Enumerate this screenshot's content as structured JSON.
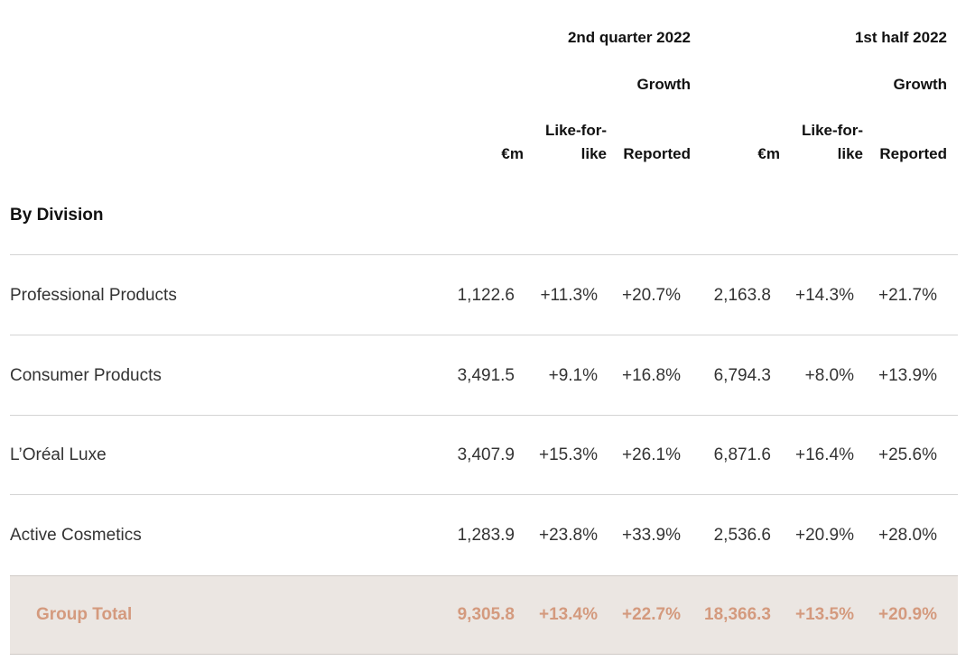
{
  "header": {
    "period1": "2nd quarter 2022",
    "period2": "1st half 2022",
    "growth1": "Growth",
    "growth2": "Growth",
    "em1": "€m",
    "lfl1_line1": "Like-for-",
    "lfl1_line2": "like",
    "reported1": "Reported",
    "em2": "€m",
    "lfl2_line1": "Like-for-",
    "lfl2_line2": "like",
    "reported2": "Reported"
  },
  "section_title": "By Division",
  "rows": [
    {
      "label": "Professional Products",
      "values": [
        "1,122.6",
        "+11.3%",
        "+20.7%",
        "2,163.8",
        "+14.3%",
        "+21.7%"
      ]
    },
    {
      "label": "Consumer Products",
      "values": [
        "3,491.5",
        "+9.1%",
        "+16.8%",
        "6,794.3",
        "+8.0%",
        "+13.9%"
      ]
    },
    {
      "label": "L’Oréal Luxe",
      "values": [
        "3,407.9",
        "+15.3%",
        "+26.1%",
        "6,871.6",
        "+16.4%",
        "+25.6%"
      ]
    },
    {
      "label": "Active Cosmetics",
      "values": [
        "1,283.9",
        "+23.8%",
        "+33.9%",
        "2,536.6",
        "+20.9%",
        "+28.0%"
      ]
    }
  ],
  "total": {
    "label": "Group Total",
    "values": [
      "9,305.8",
      "+13.4%",
      "+22.7%",
      "18,366.3",
      "+13.5%",
      "+20.9%"
    ]
  },
  "colors": {
    "total_text": "#d49a7e",
    "total_background": "#ebe6e2",
    "rule": "#d4d4d4"
  }
}
